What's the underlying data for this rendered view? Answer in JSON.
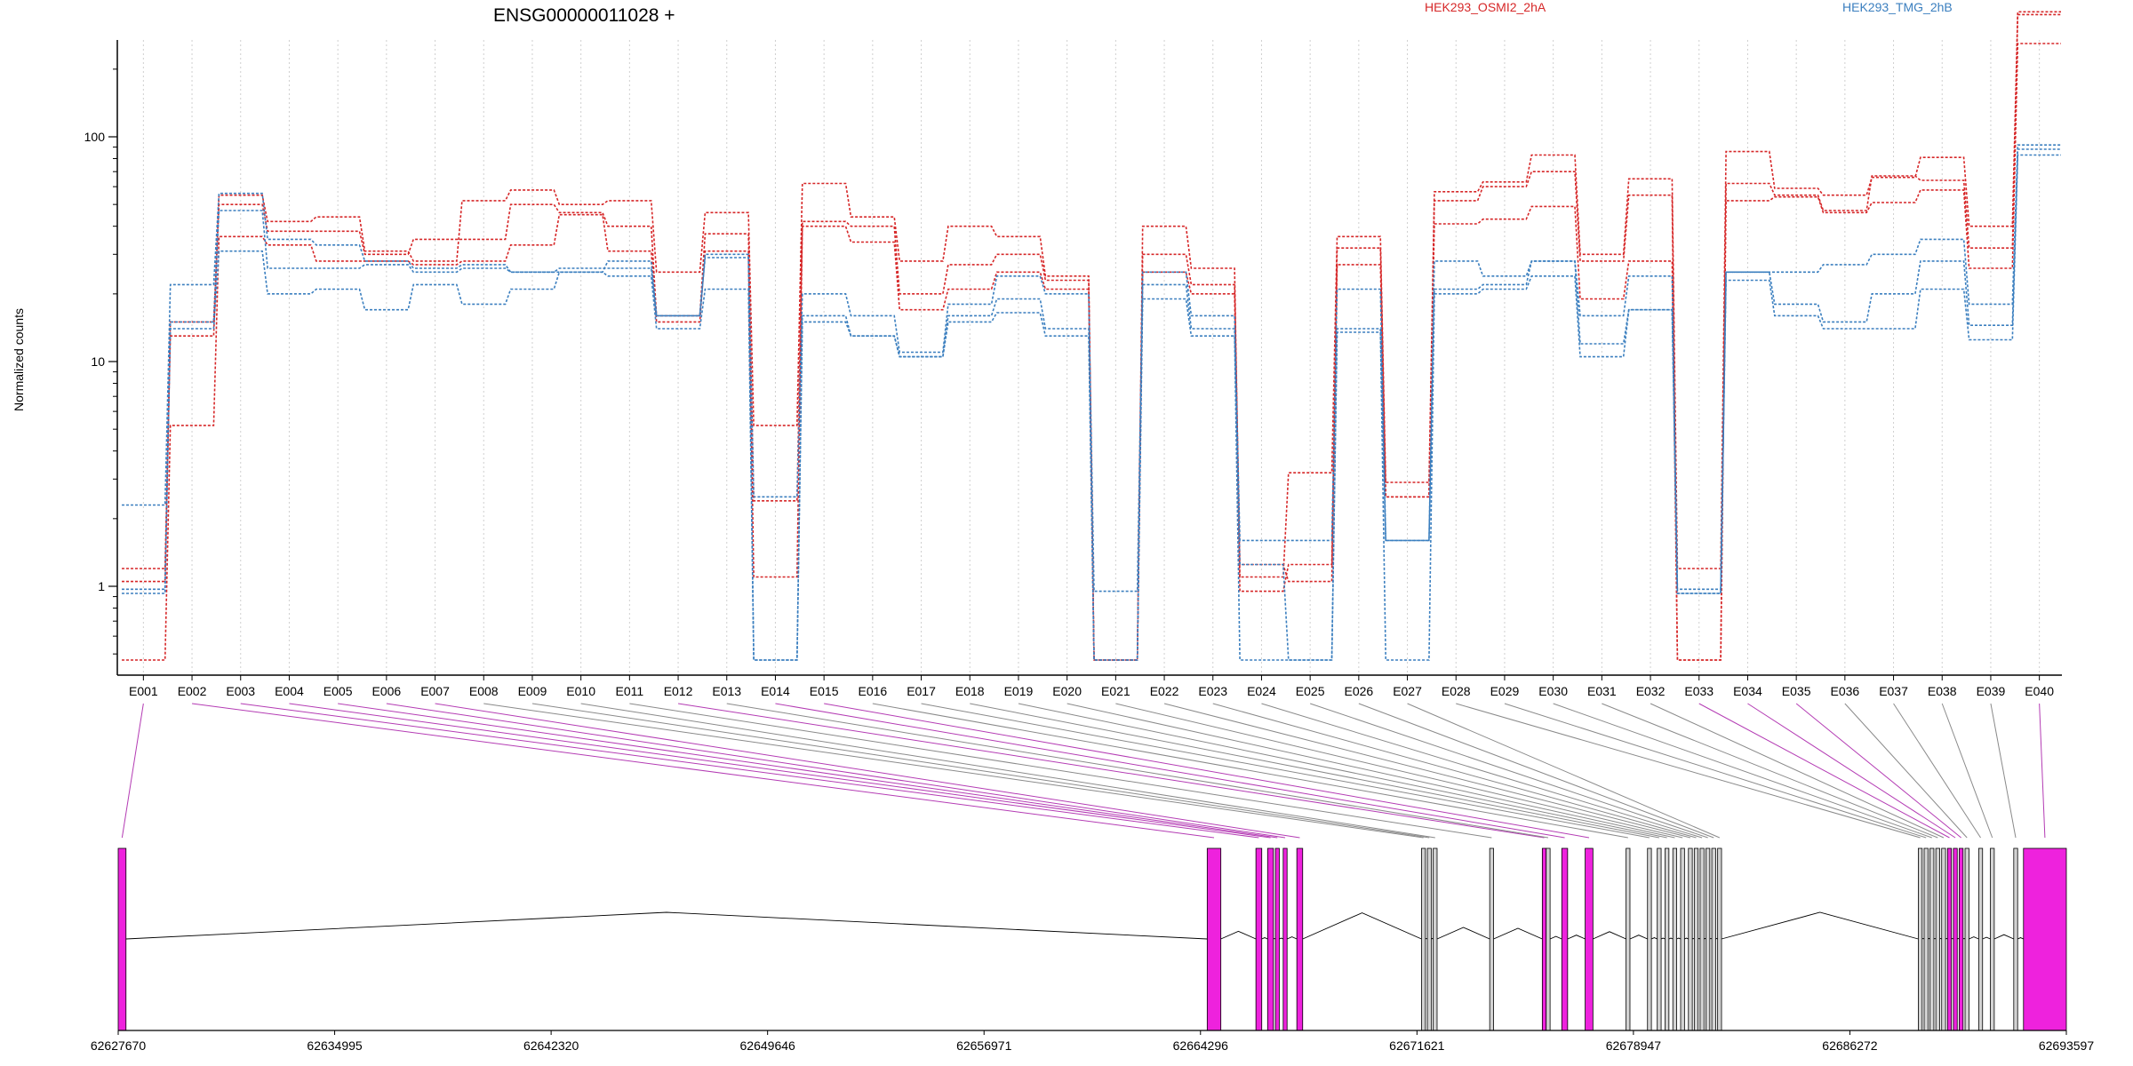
{
  "chart_data": {
    "type": "line",
    "title": "ENSG00000011028 +",
    "ylabel": "Normalized counts",
    "yscale": "log",
    "ylim": [
      0.45,
      500
    ],
    "yticks": [
      1,
      10,
      100
    ],
    "colors": {
      "OSMI2": "#d62728",
      "TMG": "#3b7fbf",
      "highlight": "#ee22dd",
      "plain": "#d3d3d3"
    },
    "legend": [
      {
        "label": "HEK293_OSMI2_2hA",
        "color": "#d62728"
      },
      {
        "label": "HEK293_TMG_2hB",
        "color": "#3b7fbf"
      }
    ],
    "categories": [
      "E001",
      "E002",
      "E003",
      "E004",
      "E005",
      "E006",
      "E007",
      "E008",
      "E009",
      "E010",
      "E011",
      "E012",
      "E013",
      "E014",
      "E015",
      "E016",
      "E017",
      "E018",
      "E019",
      "E020",
      "E021",
      "E022",
      "E023",
      "E024",
      "E025",
      "E026",
      "E027",
      "E028",
      "E029",
      "E030",
      "E031",
      "E032",
      "E033",
      "E034",
      "E035",
      "E036",
      "E037",
      "E038",
      "E039",
      "E040"
    ],
    "series": [
      {
        "group": "OSMI2",
        "values": [
          1.2,
          13,
          55,
          42,
          44,
          31,
          28,
          52,
          58,
          50,
          52,
          25,
          46,
          5.2,
          62,
          44,
          28,
          40,
          36,
          24,
          0.47,
          40,
          26,
          1.1,
          3.2,
          36,
          2.9,
          57,
          63,
          83,
          30,
          65,
          1.2,
          86,
          59,
          55,
          66,
          81,
          40,
          360
        ]
      },
      {
        "group": "OSMI2",
        "values": [
          1.05,
          15,
          50,
          38,
          38,
          30,
          35,
          35,
          50,
          46,
          40,
          16,
          37,
          2.4,
          42,
          40,
          20,
          27,
          30,
          23,
          0.47,
          30,
          22,
          1.25,
          1.05,
          32,
          2.5,
          52,
          60,
          70,
          28,
          55,
          0.47,
          62,
          55,
          47,
          67,
          64,
          32,
          350
        ]
      },
      {
        "group": "OSMI2",
        "values": [
          0.47,
          5.2,
          36,
          33,
          28,
          28,
          27,
          28,
          33,
          45,
          31,
          15,
          31,
          1.1,
          40,
          34,
          17,
          21,
          25,
          21,
          0.47,
          25,
          20,
          0.95,
          1.25,
          27,
          2.5,
          41,
          43,
          49,
          19,
          28,
          0.47,
          52,
          54,
          46,
          51,
          58,
          26,
          260
        ]
      },
      {
        "group": "TMG",
        "values": [
          2.3,
          22,
          56,
          35,
          33,
          28,
          26,
          27,
          25,
          25,
          28,
          16,
          30,
          2.5,
          20,
          16,
          11,
          18,
          24,
          20,
          0.95,
          25,
          16,
          1.6,
          1.6,
          21,
          1.6,
          28,
          24,
          28,
          16,
          24,
          0.97,
          25,
          25,
          27,
          30,
          35,
          18,
          92
        ]
      },
      {
        "group": "TMG",
        "values": [
          0.97,
          15,
          47,
          26,
          26,
          27,
          25,
          26,
          25,
          26,
          26,
          16,
          29,
          0.47,
          16,
          13,
          10.5,
          16,
          19,
          14,
          0.47,
          22,
          14,
          1.25,
          0.47,
          14,
          1.6,
          21,
          22,
          28,
          12,
          17,
          0.93,
          25,
          18,
          15,
          20,
          28,
          14.5,
          88
        ]
      },
      {
        "group": "TMG",
        "values": [
          0.93,
          14,
          31,
          20,
          21,
          17,
          22,
          18,
          21,
          25,
          24,
          14,
          21,
          0.47,
          15,
          13,
          10.5,
          15,
          16.5,
          13,
          0.47,
          19,
          13,
          0.47,
          0.47,
          13.5,
          0.47,
          20,
          21,
          24,
          10.5,
          17,
          0.93,
          23,
          16,
          14,
          14,
          21,
          12.5,
          83
        ]
      }
    ],
    "gene_model": {
      "coord_ticks": [
        "62627670",
        "62634995",
        "62642320",
        "62649646",
        "62656971",
        "62664296",
        "62671621",
        "62678947",
        "62686272",
        "62693597"
      ],
      "exons": [
        {
          "id": "E001",
          "x0": 0.0,
          "x1": 0.004,
          "h": true
        },
        {
          "id": "E002",
          "x0": 0.559,
          "x1": 0.566,
          "h": true
        },
        {
          "id": "E003",
          "x0": 0.584,
          "x1": 0.587,
          "h": true
        },
        {
          "id": "E004",
          "x0": 0.59,
          "x1": 0.593,
          "h": true
        },
        {
          "id": "E005",
          "x0": 0.594,
          "x1": 0.596,
          "h": true
        },
        {
          "id": "E006",
          "x0": 0.598,
          "x1": 0.6,
          "h": true
        },
        {
          "id": "E007",
          "x0": 0.605,
          "x1": 0.608,
          "h": true
        },
        {
          "id": "E008",
          "x0": 0.669,
          "x1": 0.671,
          "h": false
        },
        {
          "id": "E009",
          "x0": 0.672,
          "x1": 0.674,
          "h": false
        },
        {
          "id": "E010",
          "x0": 0.675,
          "x1": 0.677,
          "h": false
        },
        {
          "id": "E011",
          "x0": 0.704,
          "x1": 0.706,
          "h": false
        },
        {
          "id": "E012",
          "x0": 0.731,
          "x1": 0.733,
          "h": true
        },
        {
          "id": "E013",
          "x0": 0.733,
          "x1": 0.735,
          "h": false
        },
        {
          "id": "E014",
          "x0": 0.741,
          "x1": 0.744,
          "h": true
        },
        {
          "id": "E015",
          "x0": 0.753,
          "x1": 0.757,
          "h": true
        },
        {
          "id": "E016",
          "x0": 0.774,
          "x1": 0.776,
          "h": false
        },
        {
          "id": "E017",
          "x0": 0.785,
          "x1": 0.787,
          "h": false
        },
        {
          "id": "E018",
          "x0": 0.79,
          "x1": 0.792,
          "h": false
        },
        {
          "id": "E019",
          "x0": 0.794,
          "x1": 0.796,
          "h": false
        },
        {
          "id": "E020",
          "x0": 0.798,
          "x1": 0.8,
          "h": false
        },
        {
          "id": "E021",
          "x0": 0.802,
          "x1": 0.804,
          "h": false
        },
        {
          "id": "E022",
          "x0": 0.806,
          "x1": 0.808,
          "h": false
        },
        {
          "id": "E023",
          "x0": 0.809,
          "x1": 0.811,
          "h": false
        },
        {
          "id": "E024",
          "x0": 0.812,
          "x1": 0.814,
          "h": false
        },
        {
          "id": "E025",
          "x0": 0.815,
          "x1": 0.817,
          "h": false
        },
        {
          "id": "E026",
          "x0": 0.818,
          "x1": 0.82,
          "h": false
        },
        {
          "id": "E027",
          "x0": 0.821,
          "x1": 0.823,
          "h": false
        },
        {
          "id": "E028",
          "x0": 0.924,
          "x1": 0.926,
          "h": false
        },
        {
          "id": "E029",
          "x0": 0.927,
          "x1": 0.929,
          "h": false
        },
        {
          "id": "E030",
          "x0": 0.93,
          "x1": 0.932,
          "h": false
        },
        {
          "id": "E031",
          "x0": 0.933,
          "x1": 0.935,
          "h": false
        },
        {
          "id": "E032",
          "x0": 0.936,
          "x1": 0.938,
          "h": false
        },
        {
          "id": "E033",
          "x0": 0.939,
          "x1": 0.941,
          "h": true
        },
        {
          "id": "E034",
          "x0": 0.942,
          "x1": 0.944,
          "h": true
        },
        {
          "id": "E035",
          "x0": 0.945,
          "x1": 0.947,
          "h": true
        },
        {
          "id": "E036",
          "x0": 0.948,
          "x1": 0.95,
          "h": false
        },
        {
          "id": "E037",
          "x0": 0.955,
          "x1": 0.957,
          "h": false
        },
        {
          "id": "E038",
          "x0": 0.961,
          "x1": 0.963,
          "h": false
        },
        {
          "id": "E039",
          "x0": 0.973,
          "x1": 0.975,
          "h": false
        },
        {
          "id": "E040",
          "x0": 0.978,
          "x1": 1.0,
          "h": true
        }
      ]
    }
  }
}
